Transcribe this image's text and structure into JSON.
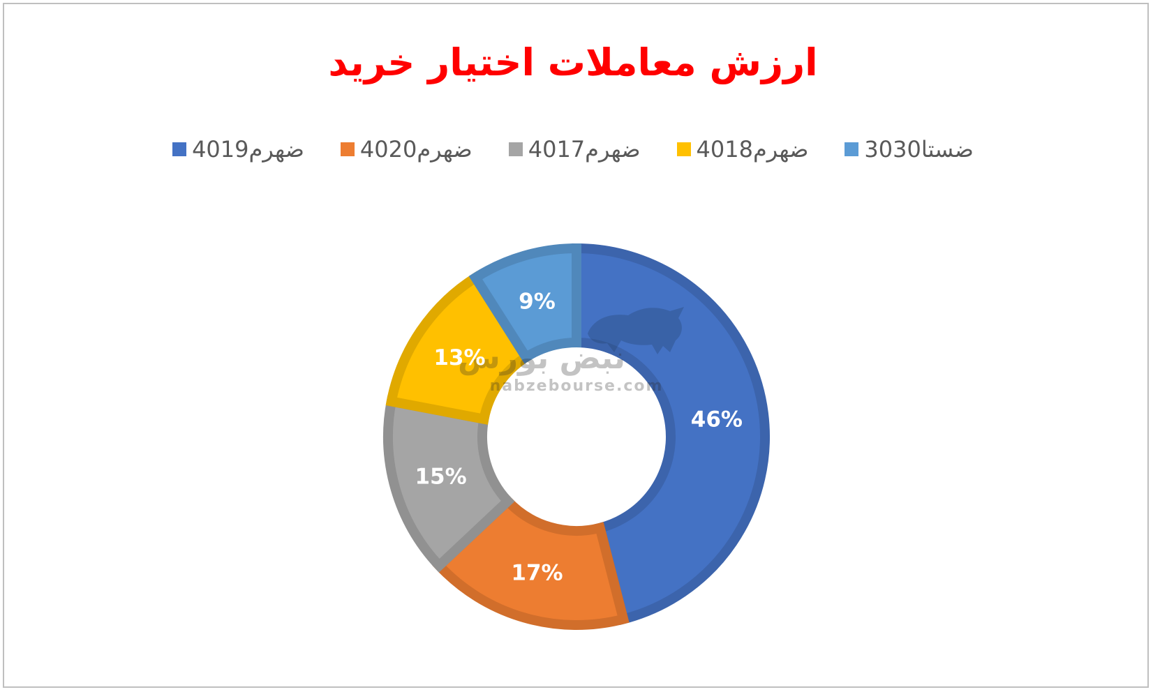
{
  "chart_data": {
    "type": "pie",
    "variant": "doughnut",
    "title": "ارزش معاملات اختیار خرید",
    "legend_position": "top",
    "slices": [
      {
        "name": "ضهرم4019",
        "value": 46,
        "label": "46%",
        "color": "#4472c4"
      },
      {
        "name": "ضهرم4020",
        "value": 17,
        "label": "17%",
        "color": "#ed7d31"
      },
      {
        "name": "ضهرم4017",
        "value": 15,
        "label": "15%",
        "color": "#a5a5a5"
      },
      {
        "name": "ضهرم4018",
        "value": 13,
        "label": "13%",
        "color": "#ffc000"
      },
      {
        "name": "ضستا3030",
        "value": 9,
        "label": "9%",
        "color": "#5b9bd5"
      }
    ]
  },
  "watermark": {
    "logo_text": "نبض بورس",
    "site": "nabzebourse.com"
  }
}
